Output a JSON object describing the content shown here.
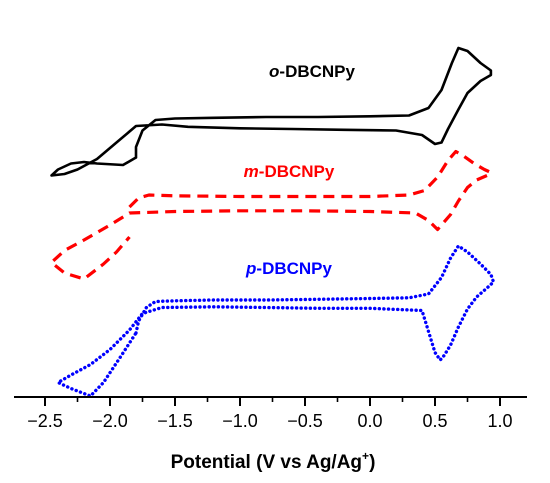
{
  "chart_data": {
    "type": "line",
    "xlabel": {
      "main": "Potential (V vs Ag/Ag",
      "sup": "+",
      "close": ")"
    },
    "ylabel": "",
    "xlim": [
      -2.7,
      1.05
    ],
    "x_ticks": [
      -2.5,
      -2.0,
      -1.5,
      -1.0,
      -0.5,
      0.0,
      0.5,
      1.0
    ],
    "x_tick_labels": [
      "−2.5",
      "−2.0",
      "−1.5",
      "−1.0",
      "−0.5",
      "0.0",
      "0.5",
      "1.0"
    ],
    "y_axis_shown": false,
    "grid": false,
    "legend": "none",
    "series": [
      {
        "label_prefix": "o",
        "label_suffix": "-DBCNPy",
        "color": "#000000",
        "style": "solid",
        "x": [
          -1.8,
          -1.8,
          -1.75,
          -1.65,
          -1.5,
          -1.2,
          -0.8,
          -0.4,
          0.0,
          0.3,
          0.45,
          0.55,
          0.63,
          0.68,
          0.75,
          0.85,
          0.93,
          0.93,
          0.85,
          0.75,
          0.68,
          0.6,
          0.55,
          0.5,
          0.4,
          0.2,
          -0.2,
          -0.6,
          -1.0,
          -1.4,
          -1.6,
          -1.8,
          -1.95,
          -2.1,
          -2.25,
          -2.35,
          -2.45,
          -2.4,
          -2.3,
          -2.2,
          -2.1,
          -1.9,
          -1.8
        ],
        "y": [
          0.5,
          1.2,
          2.3,
          3.0,
          3.1,
          3.15,
          3.2,
          3.2,
          3.25,
          3.3,
          3.8,
          5.0,
          6.8,
          7.8,
          7.6,
          6.8,
          6.3,
          6.0,
          5.6,
          4.8,
          3.7,
          2.4,
          1.5,
          1.4,
          2.0,
          2.3,
          2.35,
          2.4,
          2.45,
          2.55,
          2.7,
          2.6,
          1.5,
          0.4,
          -0.3,
          -0.6,
          -0.7,
          -0.3,
          0.1,
          0.2,
          0.1,
          0.0,
          0.5
        ]
      },
      {
        "label_prefix": "m",
        "label_suffix": "-DBCNPy",
        "color": "#ff0000",
        "style": "dashed",
        "x": [
          -1.85,
          -1.78,
          -1.7,
          -1.5,
          -1.0,
          -0.5,
          0.0,
          0.3,
          0.42,
          0.52,
          0.6,
          0.66,
          0.72,
          0.8,
          0.88,
          0.93,
          0.9,
          0.82,
          0.75,
          0.68,
          0.62,
          0.56,
          0.52,
          0.45,
          0.35,
          0.0,
          -0.5,
          -1.0,
          -1.5,
          -1.85,
          -2.0,
          -2.2,
          -2.35,
          -2.45,
          -2.35,
          -2.2,
          -2.05,
          -1.95,
          -1.85
        ],
        "y": [
          -2.8,
          -2.2,
          -2.0,
          -2.05,
          -2.1,
          -2.1,
          -2.1,
          -2.0,
          -1.7,
          -0.8,
          0.3,
          0.9,
          0.6,
          0.1,
          -0.3,
          -0.5,
          -0.7,
          -1.0,
          -1.5,
          -2.4,
          -3.3,
          -3.9,
          -4.3,
          -3.7,
          -3.2,
          -3.1,
          -3.05,
          -3.05,
          -3.1,
          -3.2,
          -4.0,
          -5.0,
          -5.7,
          -6.5,
          -7.2,
          -7.6,
          -6.6,
          -5.8,
          -4.8
        ]
      },
      {
        "label_prefix": "p",
        "label_suffix": "-DBCNPy",
        "color": "#0000ff",
        "style": "dotted",
        "x": [
          -1.8,
          -1.78,
          -1.72,
          -1.65,
          -1.5,
          -1.2,
          -0.8,
          -0.4,
          0.0,
          0.3,
          0.45,
          0.55,
          0.62,
          0.68,
          0.75,
          0.85,
          0.93,
          0.95,
          0.9,
          0.82,
          0.75,
          0.68,
          0.62,
          0.57,
          0.54,
          0.5,
          0.4,
          0.0,
          -0.4,
          -0.8,
          -1.2,
          -1.6,
          -1.75,
          -1.85,
          -2.0,
          -2.15,
          -2.3,
          -2.4,
          -2.3,
          -2.15,
          -2.05,
          -1.92,
          -1.8
        ],
        "y": [
          -11.2,
          -10.4,
          -9.5,
          -9.1,
          -9.05,
          -9.0,
          -9.0,
          -8.95,
          -8.9,
          -8.85,
          -8.6,
          -7.5,
          -6.2,
          -5.4,
          -5.8,
          -6.6,
          -7.3,
          -7.8,
          -8.2,
          -8.8,
          -9.6,
          -10.8,
          -12.0,
          -12.7,
          -13.0,
          -12.5,
          -9.7,
          -9.55,
          -9.55,
          -9.5,
          -9.45,
          -9.5,
          -9.9,
          -11.0,
          -12.3,
          -13.3,
          -14.0,
          -14.5,
          -14.9,
          -15.4,
          -14.5,
          -12.8,
          -11.2
        ]
      }
    ]
  }
}
